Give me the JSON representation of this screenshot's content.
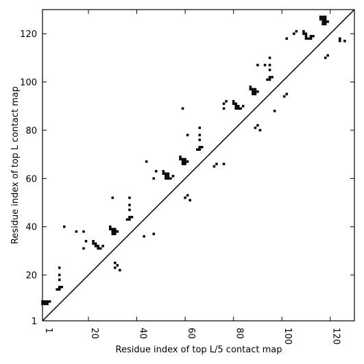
{
  "chart_data": {
    "type": "scatter",
    "title": "",
    "xlabel": "Residue index of top L/5 contact map",
    "ylabel": "Residue index of top L contact map",
    "xlim": [
      1,
      130
    ],
    "ylim": [
      1,
      130
    ],
    "xticks": [
      {
        "value": 1,
        "label": "1"
      },
      {
        "value": 20,
        "label": "20"
      },
      {
        "value": 40,
        "label": "40"
      },
      {
        "value": 60,
        "label": "60"
      },
      {
        "value": 80,
        "label": "80"
      },
      {
        "value": 100,
        "label": "100"
      },
      {
        "value": 120,
        "label": "120"
      }
    ],
    "yticks": [
      {
        "value": 1,
        "label": "1"
      },
      {
        "value": 20,
        "label": "20"
      },
      {
        "value": 40,
        "label": "40"
      },
      {
        "value": 60,
        "label": "60"
      },
      {
        "value": 80,
        "label": "80"
      },
      {
        "value": 100,
        "label": "100"
      },
      {
        "value": 120,
        "label": "120"
      }
    ],
    "diagonal": true,
    "marker_color": "#000000",
    "upper_triangle_points": [
      [
        1,
        8
      ],
      [
        1,
        9
      ],
      [
        2,
        8
      ],
      [
        2,
        9
      ],
      [
        3,
        8
      ],
      [
        3,
        9
      ],
      [
        4,
        9
      ],
      [
        7,
        14
      ],
      [
        8,
        14
      ],
      [
        8,
        15
      ],
      [
        8,
        18
      ],
      [
        8,
        20
      ],
      [
        8,
        23
      ],
      [
        9,
        15
      ],
      [
        10,
        40
      ],
      [
        15,
        38
      ],
      [
        18,
        31
      ],
      [
        18,
        38
      ],
      [
        19,
        34
      ],
      [
        22,
        33
      ],
      [
        22,
        34
      ],
      [
        23,
        32
      ],
      [
        23,
        33
      ],
      [
        24,
        31
      ],
      [
        24,
        32
      ],
      [
        25,
        31
      ],
      [
        26,
        32
      ],
      [
        29,
        39
      ],
      [
        29,
        40
      ],
      [
        30,
        37
      ],
      [
        30,
        38
      ],
      [
        30,
        39
      ],
      [
        30,
        52
      ],
      [
        31,
        37
      ],
      [
        31,
        38
      ],
      [
        31,
        39
      ],
      [
        31,
        23
      ],
      [
        31,
        25
      ],
      [
        32,
        24
      ],
      [
        32,
        38
      ],
      [
        33,
        22
      ],
      [
        36,
        43
      ],
      [
        37,
        43
      ],
      [
        37,
        44
      ],
      [
        37,
        47
      ],
      [
        37,
        49
      ],
      [
        37,
        52
      ],
      [
        38,
        44
      ],
      [
        43,
        36
      ],
      [
        44,
        67
      ],
      [
        47,
        37
      ],
      [
        47,
        60
      ],
      [
        48,
        63
      ],
      [
        51,
        62
      ],
      [
        51,
        63
      ],
      [
        52,
        60
      ],
      [
        52,
        61
      ],
      [
        52,
        62
      ],
      [
        53,
        60
      ],
      [
        53,
        61
      ],
      [
        53,
        62
      ],
      [
        54,
        60
      ],
      [
        55,
        61
      ],
      [
        58,
        68
      ],
      [
        58,
        69
      ],
      [
        59,
        66
      ],
      [
        59,
        67
      ],
      [
        59,
        68
      ],
      [
        59,
        89
      ],
      [
        60,
        66
      ],
      [
        60,
        67
      ],
      [
        60,
        68
      ],
      [
        60,
        52
      ],
      [
        61,
        53
      ],
      [
        61,
        67
      ],
      [
        61,
        78
      ],
      [
        62,
        51
      ],
      [
        65,
        72
      ],
      [
        66,
        72
      ],
      [
        66,
        73
      ],
      [
        66,
        76
      ],
      [
        66,
        78
      ],
      [
        66,
        81
      ],
      [
        67,
        73
      ],
      [
        72,
        65
      ],
      [
        73,
        66
      ],
      [
        76,
        66
      ],
      [
        76,
        89
      ],
      [
        76,
        91
      ],
      [
        77,
        92
      ],
      [
        80,
        91
      ],
      [
        80,
        92
      ],
      [
        81,
        89
      ],
      [
        81,
        90
      ],
      [
        81,
        91
      ],
      [
        82,
        89
      ],
      [
        82,
        90
      ],
      [
        83,
        89
      ],
      [
        84,
        90
      ],
      [
        87,
        97
      ],
      [
        87,
        98
      ],
      [
        88,
        95
      ],
      [
        88,
        96
      ],
      [
        88,
        97
      ],
      [
        89,
        95
      ],
      [
        89,
        96
      ],
      [
        89,
        97
      ],
      [
        89,
        81
      ],
      [
        90,
        82
      ],
      [
        90,
        96
      ],
      [
        90,
        107
      ],
      [
        91,
        80
      ],
      [
        93,
        107
      ],
      [
        94,
        101
      ],
      [
        95,
        101
      ],
      [
        95,
        102
      ],
      [
        95,
        105
      ],
      [
        95,
        107
      ],
      [
        95,
        110
      ],
      [
        96,
        102
      ],
      [
        97,
        88
      ],
      [
        101,
        94
      ],
      [
        102,
        95
      ],
      [
        102,
        118
      ],
      [
        105,
        120
      ],
      [
        106,
        121
      ],
      [
        109,
        120
      ],
      [
        109,
        121
      ],
      [
        110,
        118
      ],
      [
        110,
        119
      ],
      [
        110,
        120
      ],
      [
        111,
        118
      ],
      [
        112,
        118
      ],
      [
        112,
        119
      ],
      [
        113,
        119
      ],
      [
        116,
        126
      ],
      [
        116,
        127
      ],
      [
        117,
        124
      ],
      [
        117,
        125
      ],
      [
        117,
        126
      ],
      [
        117,
        127
      ],
      [
        118,
        124
      ],
      [
        118,
        125
      ],
      [
        118,
        126
      ],
      [
        118,
        127
      ],
      [
        118,
        110
      ],
      [
        119,
        111
      ],
      [
        119,
        125
      ],
      [
        124,
        117
      ],
      [
        124,
        118
      ],
      [
        126,
        117
      ]
    ]
  }
}
